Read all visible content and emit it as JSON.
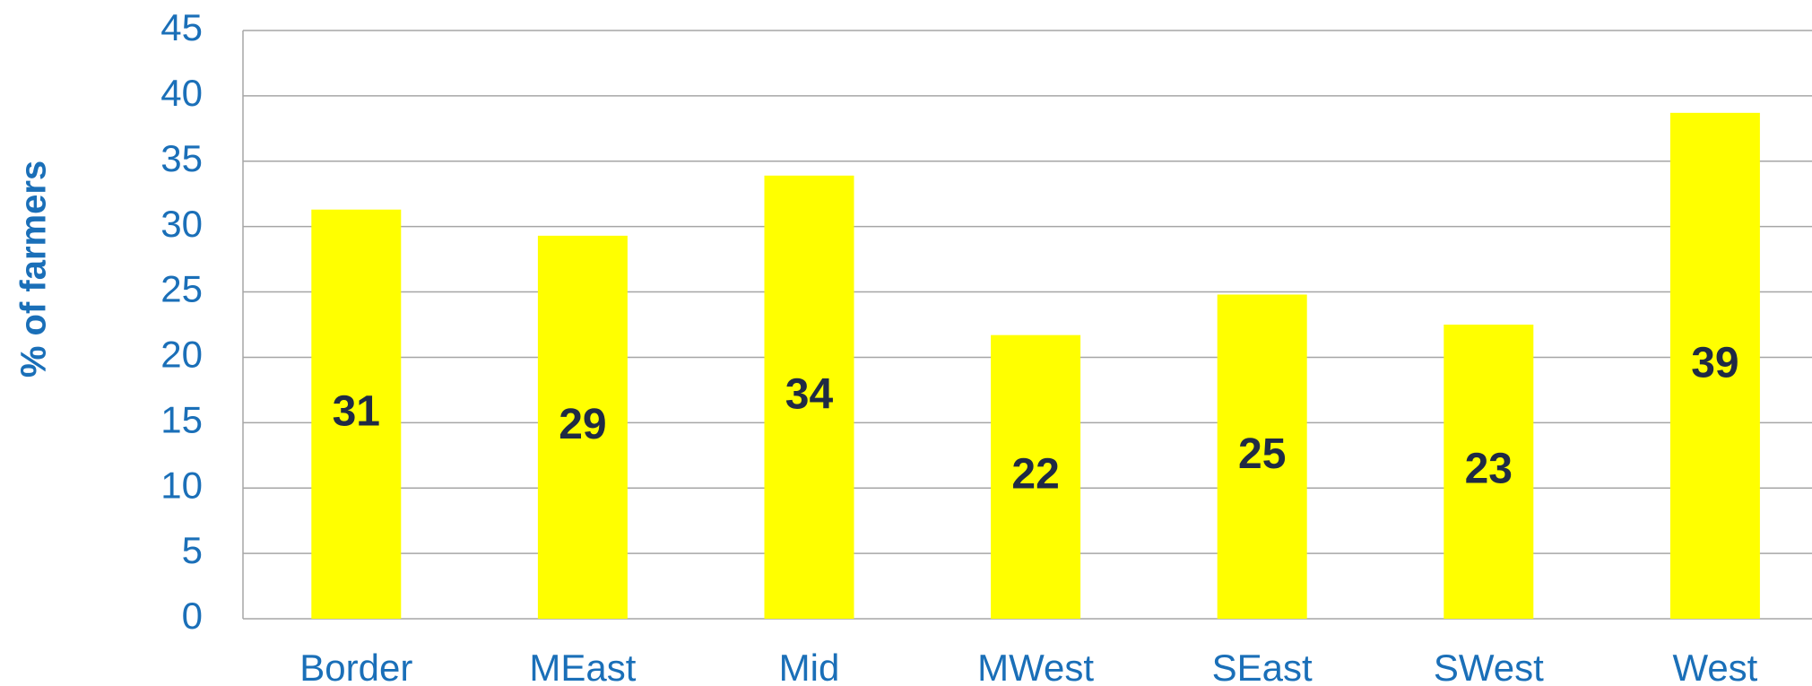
{
  "chart_data": {
    "type": "bar",
    "y_label": "% of farmers",
    "categories": [
      "Border",
      "MEast",
      "Mid",
      "MWest",
      "SEast",
      "SWest",
      "West"
    ],
    "values": [
      31.3,
      29.3,
      33.9,
      21.7,
      24.8,
      22.5,
      38.7
    ],
    "value_labels": [
      "31",
      "29",
      "34",
      "22",
      "25",
      "23",
      "39"
    ],
    "color": "#ffff00",
    "ylim": [
      0,
      45
    ],
    "yticks": [
      0,
      5,
      10,
      15,
      20,
      25,
      30,
      35,
      40,
      45
    ],
    "grid": true
  }
}
